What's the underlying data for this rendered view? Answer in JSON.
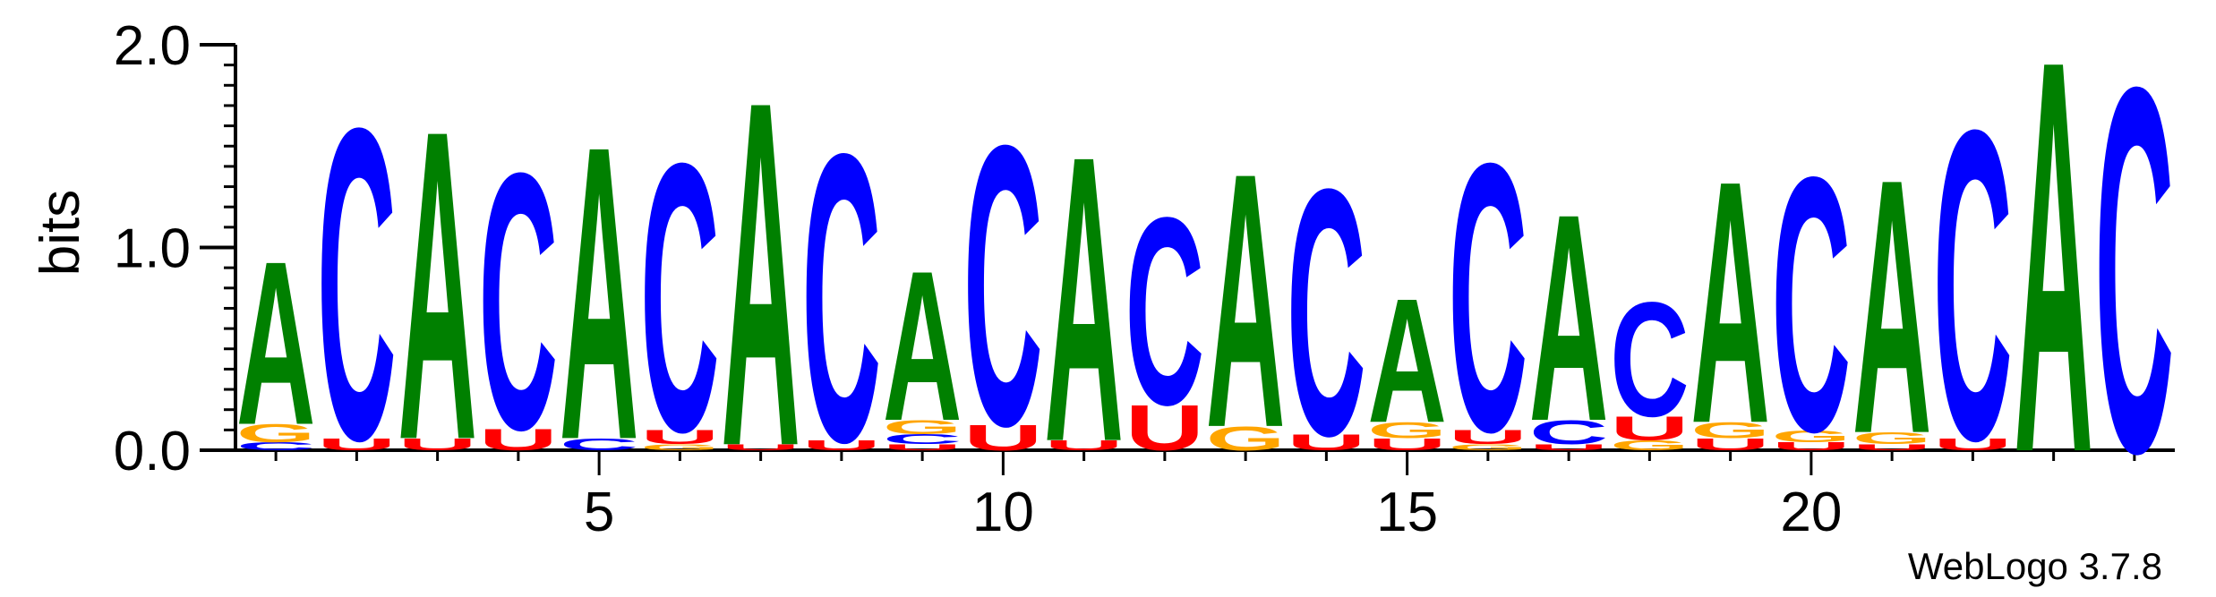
{
  "chart_data": {
    "type": "sequence-logo",
    "ylabel": "bits",
    "ylim": [
      0,
      2.0
    ],
    "yticks": [
      "0.0",
      "1.0",
      "2.0"
    ],
    "yticks_values": [
      0,
      1,
      2
    ],
    "xticks": [
      "5",
      "10",
      "15",
      "20"
    ],
    "xticks_positions": [
      5,
      10,
      15,
      20
    ],
    "xlim": [
      0.5,
      24.5
    ],
    "watermark": "WebLogo 3.7.8",
    "colors": {
      "A": "#008000",
      "C": "#0000ff",
      "G": "#ffa500",
      "U": "#ff0000"
    },
    "positions": [
      {
        "pos": 1,
        "letters": [
          [
            "C",
            0.04
          ],
          [
            "G",
            0.09
          ],
          [
            "A",
            0.83
          ]
        ]
      },
      {
        "pos": 2,
        "letters": [
          [
            "U",
            0.06
          ],
          [
            "C",
            1.58
          ]
        ]
      },
      {
        "pos": 3,
        "letters": [
          [
            "U",
            0.06
          ],
          [
            "A",
            1.57
          ]
        ]
      },
      {
        "pos": 4,
        "letters": [
          [
            "U",
            0.11
          ],
          [
            "C",
            1.3
          ]
        ]
      },
      {
        "pos": 5,
        "letters": [
          [
            "C",
            0.06
          ],
          [
            "A",
            1.49
          ]
        ]
      },
      {
        "pos": 6,
        "letters": [
          [
            "G",
            0.03
          ],
          [
            "U",
            0.07
          ],
          [
            "C",
            1.36
          ]
        ]
      },
      {
        "pos": 7,
        "letters": [
          [
            "U",
            0.03
          ],
          [
            "A",
            1.75
          ]
        ]
      },
      {
        "pos": 8,
        "letters": [
          [
            "U",
            0.05
          ],
          [
            "C",
            1.46
          ]
        ]
      },
      {
        "pos": 9,
        "letters": [
          [
            "U",
            0.03
          ],
          [
            "C",
            0.05
          ],
          [
            "G",
            0.07
          ],
          [
            "A",
            0.76
          ]
        ]
      },
      {
        "pos": 10,
        "letters": [
          [
            "U",
            0.13
          ],
          [
            "C",
            1.42
          ]
        ]
      },
      {
        "pos": 11,
        "letters": [
          [
            "U",
            0.05
          ],
          [
            "A",
            1.45
          ]
        ]
      },
      {
        "pos": 12,
        "letters": [
          [
            "U",
            0.23
          ],
          [
            "C",
            0.95
          ]
        ]
      },
      {
        "pos": 13,
        "letters": [
          [
            "G",
            0.12
          ],
          [
            "A",
            1.29
          ]
        ]
      },
      {
        "pos": 14,
        "letters": [
          [
            "U",
            0.08
          ],
          [
            "C",
            1.25
          ]
        ]
      },
      {
        "pos": 15,
        "letters": [
          [
            "U",
            0.06
          ],
          [
            "G",
            0.08
          ],
          [
            "A",
            0.63
          ]
        ]
      },
      {
        "pos": 16,
        "letters": [
          [
            "G",
            0.03
          ],
          [
            "U",
            0.07
          ],
          [
            "C",
            1.36
          ]
        ]
      },
      {
        "pos": 17,
        "letters": [
          [
            "U",
            0.03
          ],
          [
            "C",
            0.12
          ],
          [
            "A",
            1.05
          ]
        ]
      },
      {
        "pos": 18,
        "letters": [
          [
            "G",
            0.05
          ],
          [
            "U",
            0.12
          ],
          [
            "C",
            0.58
          ]
        ]
      },
      {
        "pos": 19,
        "letters": [
          [
            "U",
            0.06
          ],
          [
            "G",
            0.08
          ],
          [
            "A",
            1.23
          ]
        ]
      },
      {
        "pos": 20,
        "letters": [
          [
            "U",
            0.04
          ],
          [
            "G",
            0.06
          ],
          [
            "C",
            1.29
          ]
        ]
      },
      {
        "pos": 21,
        "letters": [
          [
            "U",
            0.03
          ],
          [
            "G",
            0.06
          ],
          [
            "A",
            1.29
          ]
        ]
      },
      {
        "pos": 22,
        "letters": [
          [
            "U",
            0.06
          ],
          [
            "C",
            1.57
          ]
        ]
      },
      {
        "pos": 23,
        "letters": [
          [
            "A",
            1.99
          ]
        ]
      },
      {
        "pos": 24,
        "letters": [
          [
            "C",
            1.85
          ]
        ]
      }
    ]
  }
}
